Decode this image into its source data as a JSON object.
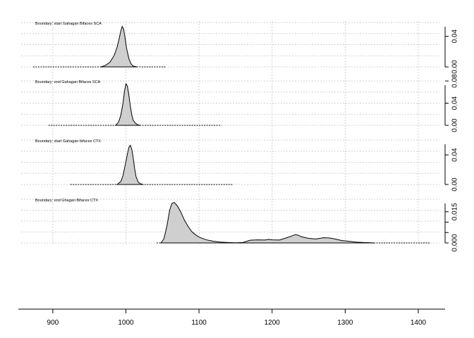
{
  "chart_data": {
    "type": "area",
    "x_axis": {
      "range": [
        850,
        1440
      ],
      "ticks": [
        900,
        1000,
        1100,
        1200,
        1300,
        1400
      ],
      "tick_labels": [
        "900",
        "1000",
        "1100",
        "1200",
        "1300",
        "1400"
      ]
    },
    "grid": true,
    "panels": [
      {
        "title": "Boundary: start Gahagan Bifaces SCA",
        "ylim": [
          0,
          0.058
        ],
        "y_ticks": [
          0,
          0.04
        ],
        "y_tick_labels": [
          "0.00",
          "0.04"
        ],
        "range_line": [
          873,
          1055
        ],
        "x": [
          966,
          972,
          978,
          984,
          988,
          991,
          993,
          995,
          997,
          999,
          1001,
          1004,
          1007,
          1010,
          1015
        ],
        "y": [
          0,
          0.002,
          0.006,
          0.015,
          0.026,
          0.038,
          0.047,
          0.053,
          0.049,
          0.037,
          0.024,
          0.011,
          0.004,
          0.001,
          0
        ]
      },
      {
        "title": "Boundary: end Gahagan Bifaces SCA",
        "ylim": [
          0,
          0.08
        ],
        "y_ticks": [
          0,
          0.04,
          0.08
        ],
        "y_tick_labels": [
          "0.00",
          "0.04",
          "0.08"
        ],
        "range_line": [
          894,
          1131
        ],
        "x": [
          986,
          990,
          993,
          996,
          998,
          1000,
          1002,
          1004,
          1006,
          1008,
          1010,
          1013,
          1016,
          1020
        ],
        "y": [
          0,
          0.006,
          0.018,
          0.04,
          0.061,
          0.075,
          0.071,
          0.055,
          0.035,
          0.019,
          0.009,
          0.004,
          0.001,
          0
        ]
      },
      {
        "title": "Boundary: start Gahagan bifaces CTX",
        "ylim": [
          0,
          0.06
        ],
        "y_ticks": [
          0,
          0.04
        ],
        "y_tick_labels": [
          "0.00",
          "0.04"
        ],
        "range_line": [
          924,
          1147
        ],
        "x": [
          988,
          993,
          996,
          999,
          1002,
          1004,
          1006,
          1008,
          1010,
          1012,
          1014,
          1017,
          1020,
          1024
        ],
        "y": [
          0,
          0.004,
          0.012,
          0.026,
          0.041,
          0.05,
          0.053,
          0.048,
          0.036,
          0.021,
          0.01,
          0.003,
          0.001,
          0
        ]
      },
      {
        "title": "Boundary: end Ghagan Bifaces CTX",
        "ylim": [
          0,
          0.021
        ],
        "y_ticks": [
          0,
          0.005,
          0.01,
          0.015
        ],
        "y_tick_labels": [
          "0.000",
          "",
          "",
          "0.015"
        ],
        "range_line": [
          1042,
          1416
        ],
        "x": [
          1048,
          1052,
          1056,
          1060,
          1063,
          1066,
          1070,
          1075,
          1080,
          1085,
          1090,
          1095,
          1100,
          1110,
          1120,
          1130,
          1140,
          1150,
          1160,
          1170,
          1180,
          1190,
          1195,
          1200,
          1210,
          1220,
          1228,
          1232,
          1236,
          1240,
          1250,
          1260,
          1270,
          1278,
          1285,
          1295,
          1305,
          1315,
          1325,
          1335,
          1340
        ],
        "y": [
          0,
          0.002,
          0.008,
          0.016,
          0.019,
          0.0195,
          0.018,
          0.015,
          0.011,
          0.008,
          0.0055,
          0.004,
          0.0028,
          0.0015,
          0.0008,
          0.0004,
          0.0002,
          0.0001,
          0.0002,
          0.0013,
          0.0015,
          0.0014,
          0.0017,
          0.0015,
          0.0014,
          0.0025,
          0.0035,
          0.004,
          0.0037,
          0.003,
          0.0022,
          0.0019,
          0.0025,
          0.0024,
          0.002,
          0.0012,
          0.0008,
          0.0004,
          0.0002,
          0.0001,
          0
        ]
      }
    ]
  }
}
